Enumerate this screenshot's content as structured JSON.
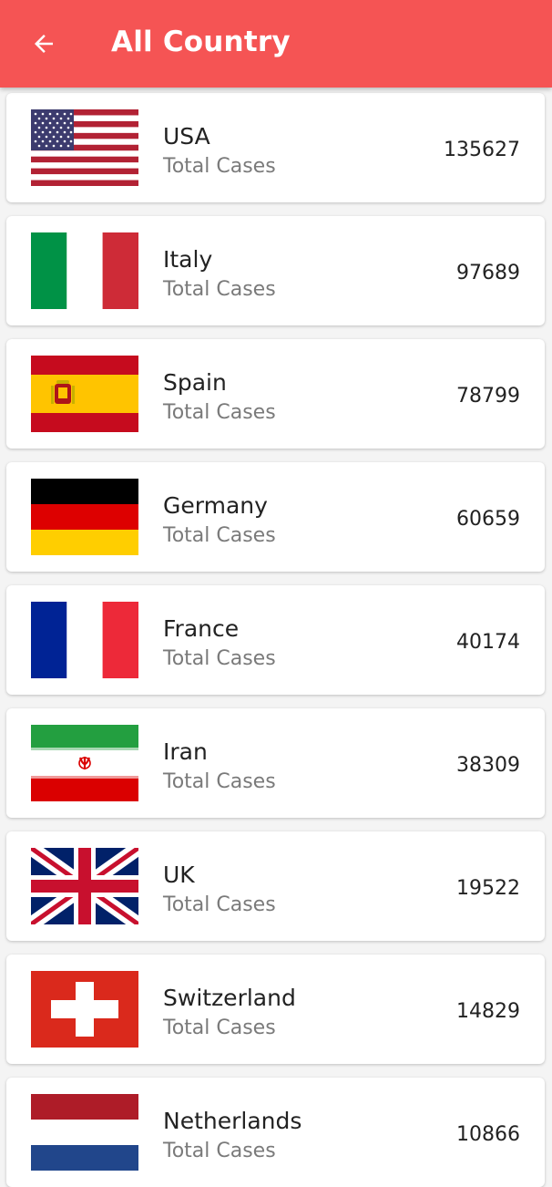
{
  "appbar": {
    "title": "All Country",
    "back_icon": "arrow-back-icon",
    "color": "#f55454"
  },
  "subtitle_label": "Total Cases",
  "countries": [
    {
      "name": "USA",
      "count": "135627",
      "flag_icon": "usa-flag-icon"
    },
    {
      "name": "Italy",
      "count": "97689",
      "flag_icon": "italy-flag-icon"
    },
    {
      "name": "Spain",
      "count": "78799",
      "flag_icon": "spain-flag-icon"
    },
    {
      "name": "Germany",
      "count": "60659",
      "flag_icon": "germany-flag-icon"
    },
    {
      "name": "France",
      "count": "40174",
      "flag_icon": "france-flag-icon"
    },
    {
      "name": "Iran",
      "count": "38309",
      "flag_icon": "iran-flag-icon"
    },
    {
      "name": "UK",
      "count": "19522",
      "flag_icon": "uk-flag-icon"
    },
    {
      "name": "Switzerland",
      "count": "14829",
      "flag_icon": "switzerland-flag-icon"
    },
    {
      "name": "Netherlands",
      "count": "10866",
      "flag_icon": "netherlands-flag-icon"
    }
  ]
}
